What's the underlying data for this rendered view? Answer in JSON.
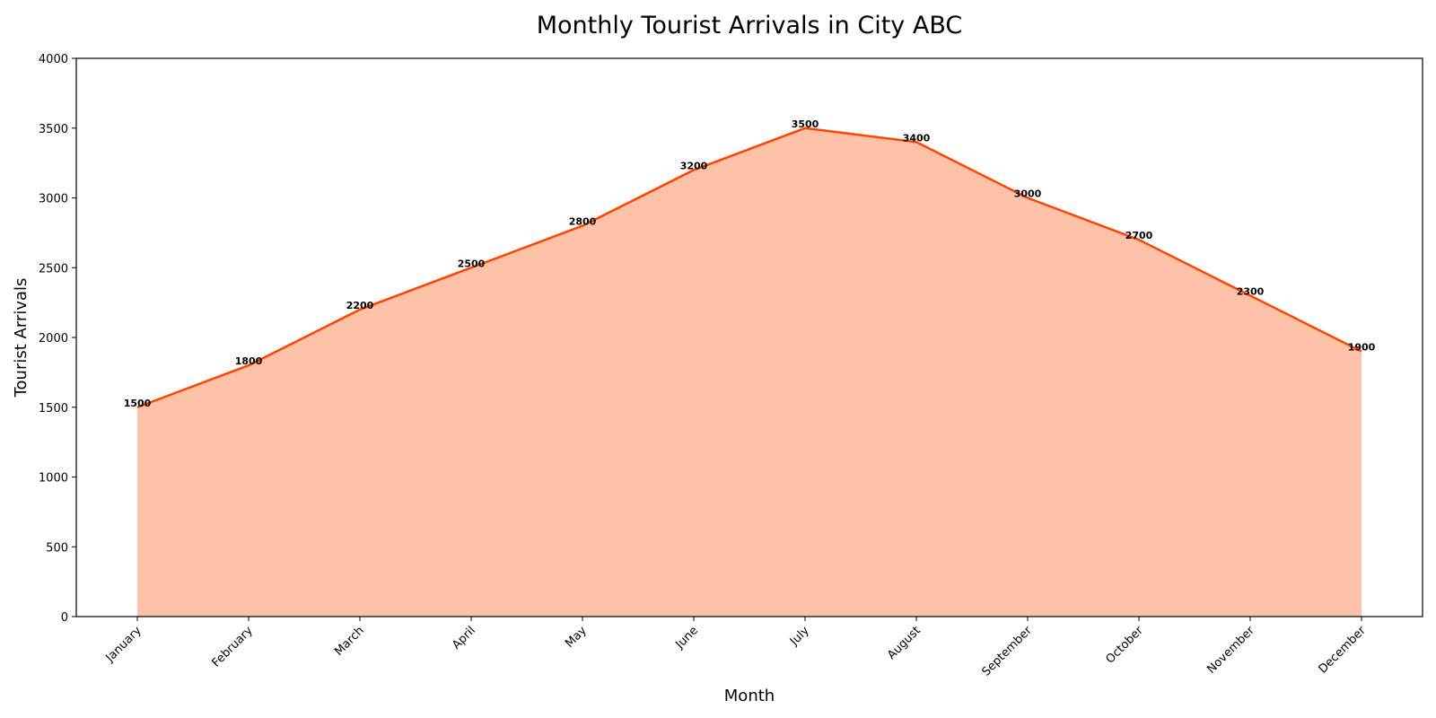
{
  "chart_data": {
    "type": "area",
    "title": "Monthly Tourist Arrivals in City ABC",
    "xlabel": "Month",
    "ylabel": "Tourist Arrivals",
    "categories": [
      "January",
      "February",
      "March",
      "April",
      "May",
      "June",
      "July",
      "August",
      "September",
      "October",
      "November",
      "December"
    ],
    "series": [
      {
        "name": "Tourist Arrivals",
        "values": [
          1500,
          1800,
          2200,
          2500,
          2800,
          3200,
          3500,
          3400,
          3000,
          2700,
          2300,
          1900
        ]
      }
    ],
    "ylim": [
      0,
      4000
    ],
    "yticks": [
      0,
      500,
      1000,
      1500,
      2000,
      2500,
      3000,
      3500,
      4000
    ],
    "grid": false,
    "legend": "none",
    "colors": {
      "line": "#ff4500",
      "fill": "#ffa07a"
    }
  }
}
